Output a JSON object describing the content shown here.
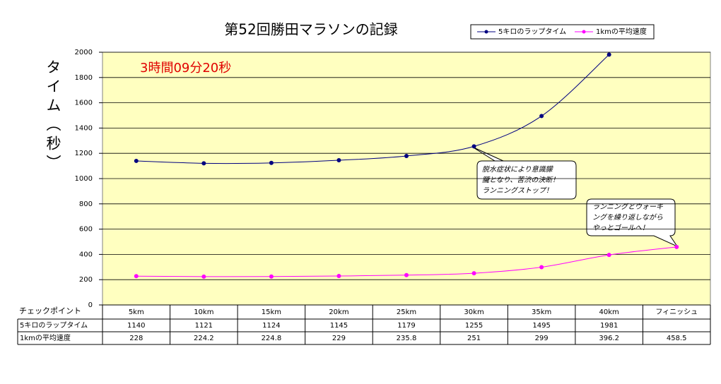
{
  "chart_data": {
    "type": "line",
    "title": "第52回勝田マラソンの記録",
    "y_label": "タイム（秒）",
    "annotation": "3時間09分20秒",
    "categories": [
      "5km",
      "10km",
      "15km",
      "20km",
      "25km",
      "30km",
      "35km",
      "40km",
      "フィニッシュ"
    ],
    "table_header": "チェックポイント",
    "series": [
      {
        "name": "5キロのラップタイム",
        "color": "#000080",
        "values": [
          1140,
          1121,
          1124,
          1145,
          1179,
          1255,
          1495,
          1981,
          null
        ]
      },
      {
        "name": "1kmの平均速度",
        "color": "#ff00ff",
        "values": [
          228,
          224.2,
          224.8,
          229,
          235.8,
          251,
          299,
          396.2,
          458.5
        ]
      }
    ],
    "ylim": [
      0,
      2000
    ],
    "yticks": [
      0,
      200,
      400,
      600,
      800,
      1000,
      1200,
      1400,
      1600,
      1800,
      2000
    ],
    "grid": true,
    "callouts": [
      [
        "脱水症状により意識朦",
        "朧となり、苦渋の決断！",
        "ランニングストップ！"
      ],
      [
        "ランニングとウォーキ",
        "ングを繰り返しながら",
        "やっとゴールへ！"
      ]
    ]
  }
}
